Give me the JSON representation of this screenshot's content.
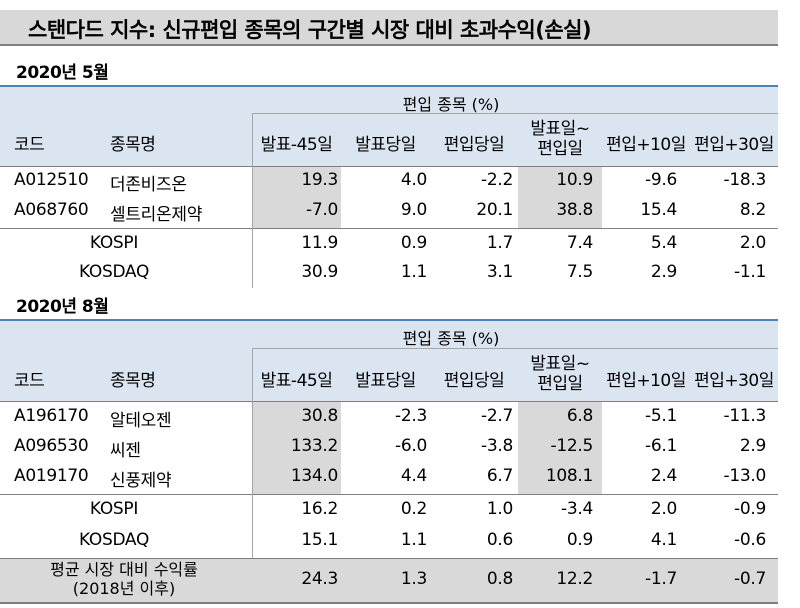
{
  "title": "스탠다드 지수: 신규편입 종목의 구간별 시장 대비 초과수익(손실)",
  "table_header": {
    "band": "편입 종목 (%)",
    "code": "코드",
    "name": "종목명",
    "cols": [
      "발표-45일",
      "발표당일",
      "편입당일",
      "발표일~",
      "편입+10일",
      "편입+30일"
    ],
    "col4_line2": "편입일"
  },
  "sections": [
    {
      "period": "2020년 5월",
      "stocks": [
        {
          "code": "A012510",
          "name": "더존비즈온",
          "values": [
            "19.3",
            "4.0",
            "-2.2",
            "10.9",
            "-9.6",
            "-18.3"
          ]
        },
        {
          "code": "A068760",
          "name": "셀트리온제약",
          "values": [
            "-7.0",
            "9.0",
            "20.1",
            "38.8",
            "15.4",
            "8.2"
          ]
        }
      ],
      "indices": [
        {
          "name": "KOSPI",
          "values": [
            "11.9",
            "0.9",
            "1.7",
            "7.4",
            "5.4",
            "2.0"
          ]
        },
        {
          "name": "KOSDAQ",
          "values": [
            "30.9",
            "1.1",
            "3.1",
            "7.5",
            "2.9",
            "-1.1"
          ]
        }
      ]
    },
    {
      "period": "2020년 8월",
      "stocks": [
        {
          "code": "A196170",
          "name": "알테오젠",
          "values": [
            "30.8",
            "-2.3",
            "-2.7",
            "6.8",
            "-5.1",
            "-11.3"
          ]
        },
        {
          "code": "A096530",
          "name": "씨젠",
          "values": [
            "133.2",
            "-6.0",
            "-3.8",
            "-12.5",
            "-6.1",
            "2.9"
          ]
        },
        {
          "code": "A019170",
          "name": "신풍제약",
          "values": [
            "134.0",
            "4.4",
            "6.7",
            "108.1",
            "2.4",
            "-13.0"
          ]
        }
      ],
      "indices": [
        {
          "name": "KOSPI",
          "values": [
            "16.2",
            "0.2",
            "1.0",
            "-3.4",
            "2.0",
            "-0.9"
          ]
        },
        {
          "name": "KOSDAQ",
          "values": [
            "15.1",
            "1.1",
            "0.6",
            "0.9",
            "4.1",
            "-0.6"
          ]
        }
      ]
    }
  ],
  "average": {
    "label_line1": "평균 시장 대비 수익률",
    "label_line2": "(2018년 이후)",
    "values": [
      "24.3",
      "1.3",
      "0.8",
      "12.2",
      "-1.7",
      "-0.7"
    ]
  },
  "colors": {
    "band": "#dbe5f1",
    "shade": "#d9d9d9",
    "accent_line": "#4f81bd"
  }
}
